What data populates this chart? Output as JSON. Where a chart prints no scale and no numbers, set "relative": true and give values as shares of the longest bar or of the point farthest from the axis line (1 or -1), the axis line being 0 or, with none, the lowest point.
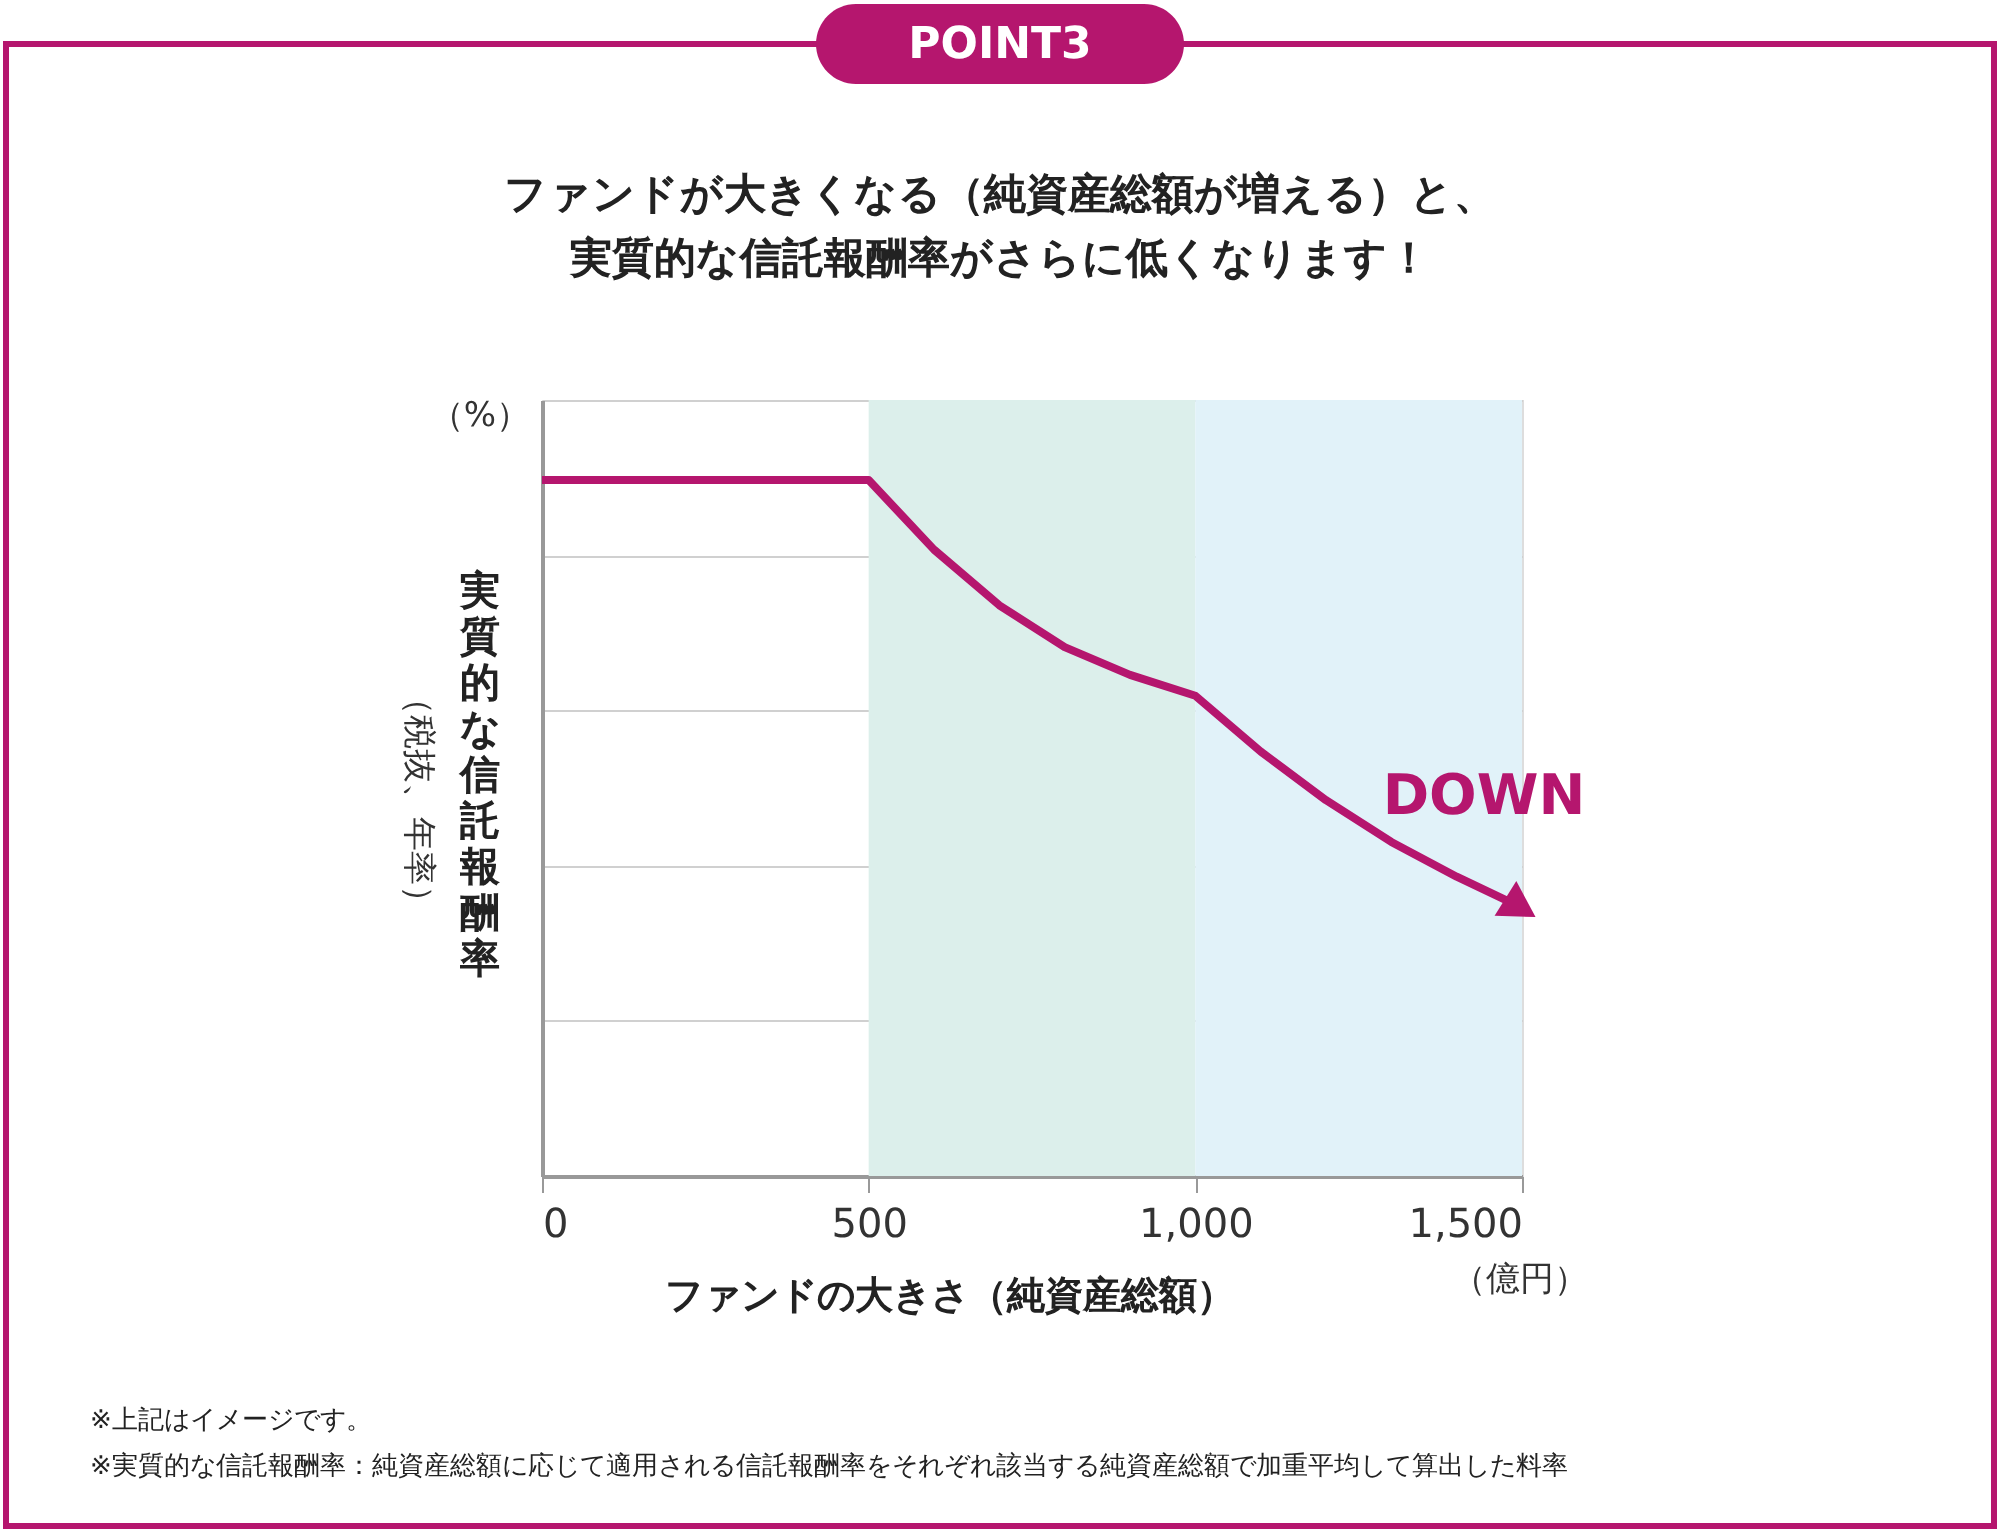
{
  "chart_data": {
    "type": "line",
    "title": "ファンドが大きくなる（純資産総額が増える）と、実質的な信託報酬率がさらに低くなります！",
    "xlabel": "ファンドの大きさ（純資産総額）",
    "ylabel": "実質的な信託報酬率",
    "x": [
      0,
      500,
      600,
      700,
      800,
      900,
      1000,
      1100,
      1200,
      1300,
      1400,
      1490
    ],
    "series": [
      {
        "color": "#b5166e",
        "values": [
          1,
          1,
          0.9,
          0.82,
          0.76,
          0.72,
          0.69,
          0.61,
          0.54,
          0.48,
          0.43,
          0.39
        ]
      }
    ],
    "relative": true,
    "xlim": [
      0,
      1500
    ],
    "xticks": [
      0,
      500,
      {
        "value": 1000,
        "label": "1,000"
      },
      {
        "value": 1500,
        "label": "1,500"
      }
    ],
    "bands": [
      {
        "axis": "x",
        "from": 500,
        "to": 1000,
        "color": "#dcefeb"
      },
      {
        "axis": "x",
        "from": 1000,
        "to": 1500,
        "color": "#e1f2f9"
      }
    ],
    "grid": "y",
    "marker": "none",
    "line_style": "solid",
    "annotations": [
      "POINT3",
      "（%）",
      "（税抜、年率）",
      "（億円）",
      "※上記はイメージです。",
      "※実質的な信託報酬率：純資産総額に応じて適用される信託報酬率をそれぞれ該当する純資産総額で加重平均して算出した料率",
      "DOWN"
    ]
  }
}
